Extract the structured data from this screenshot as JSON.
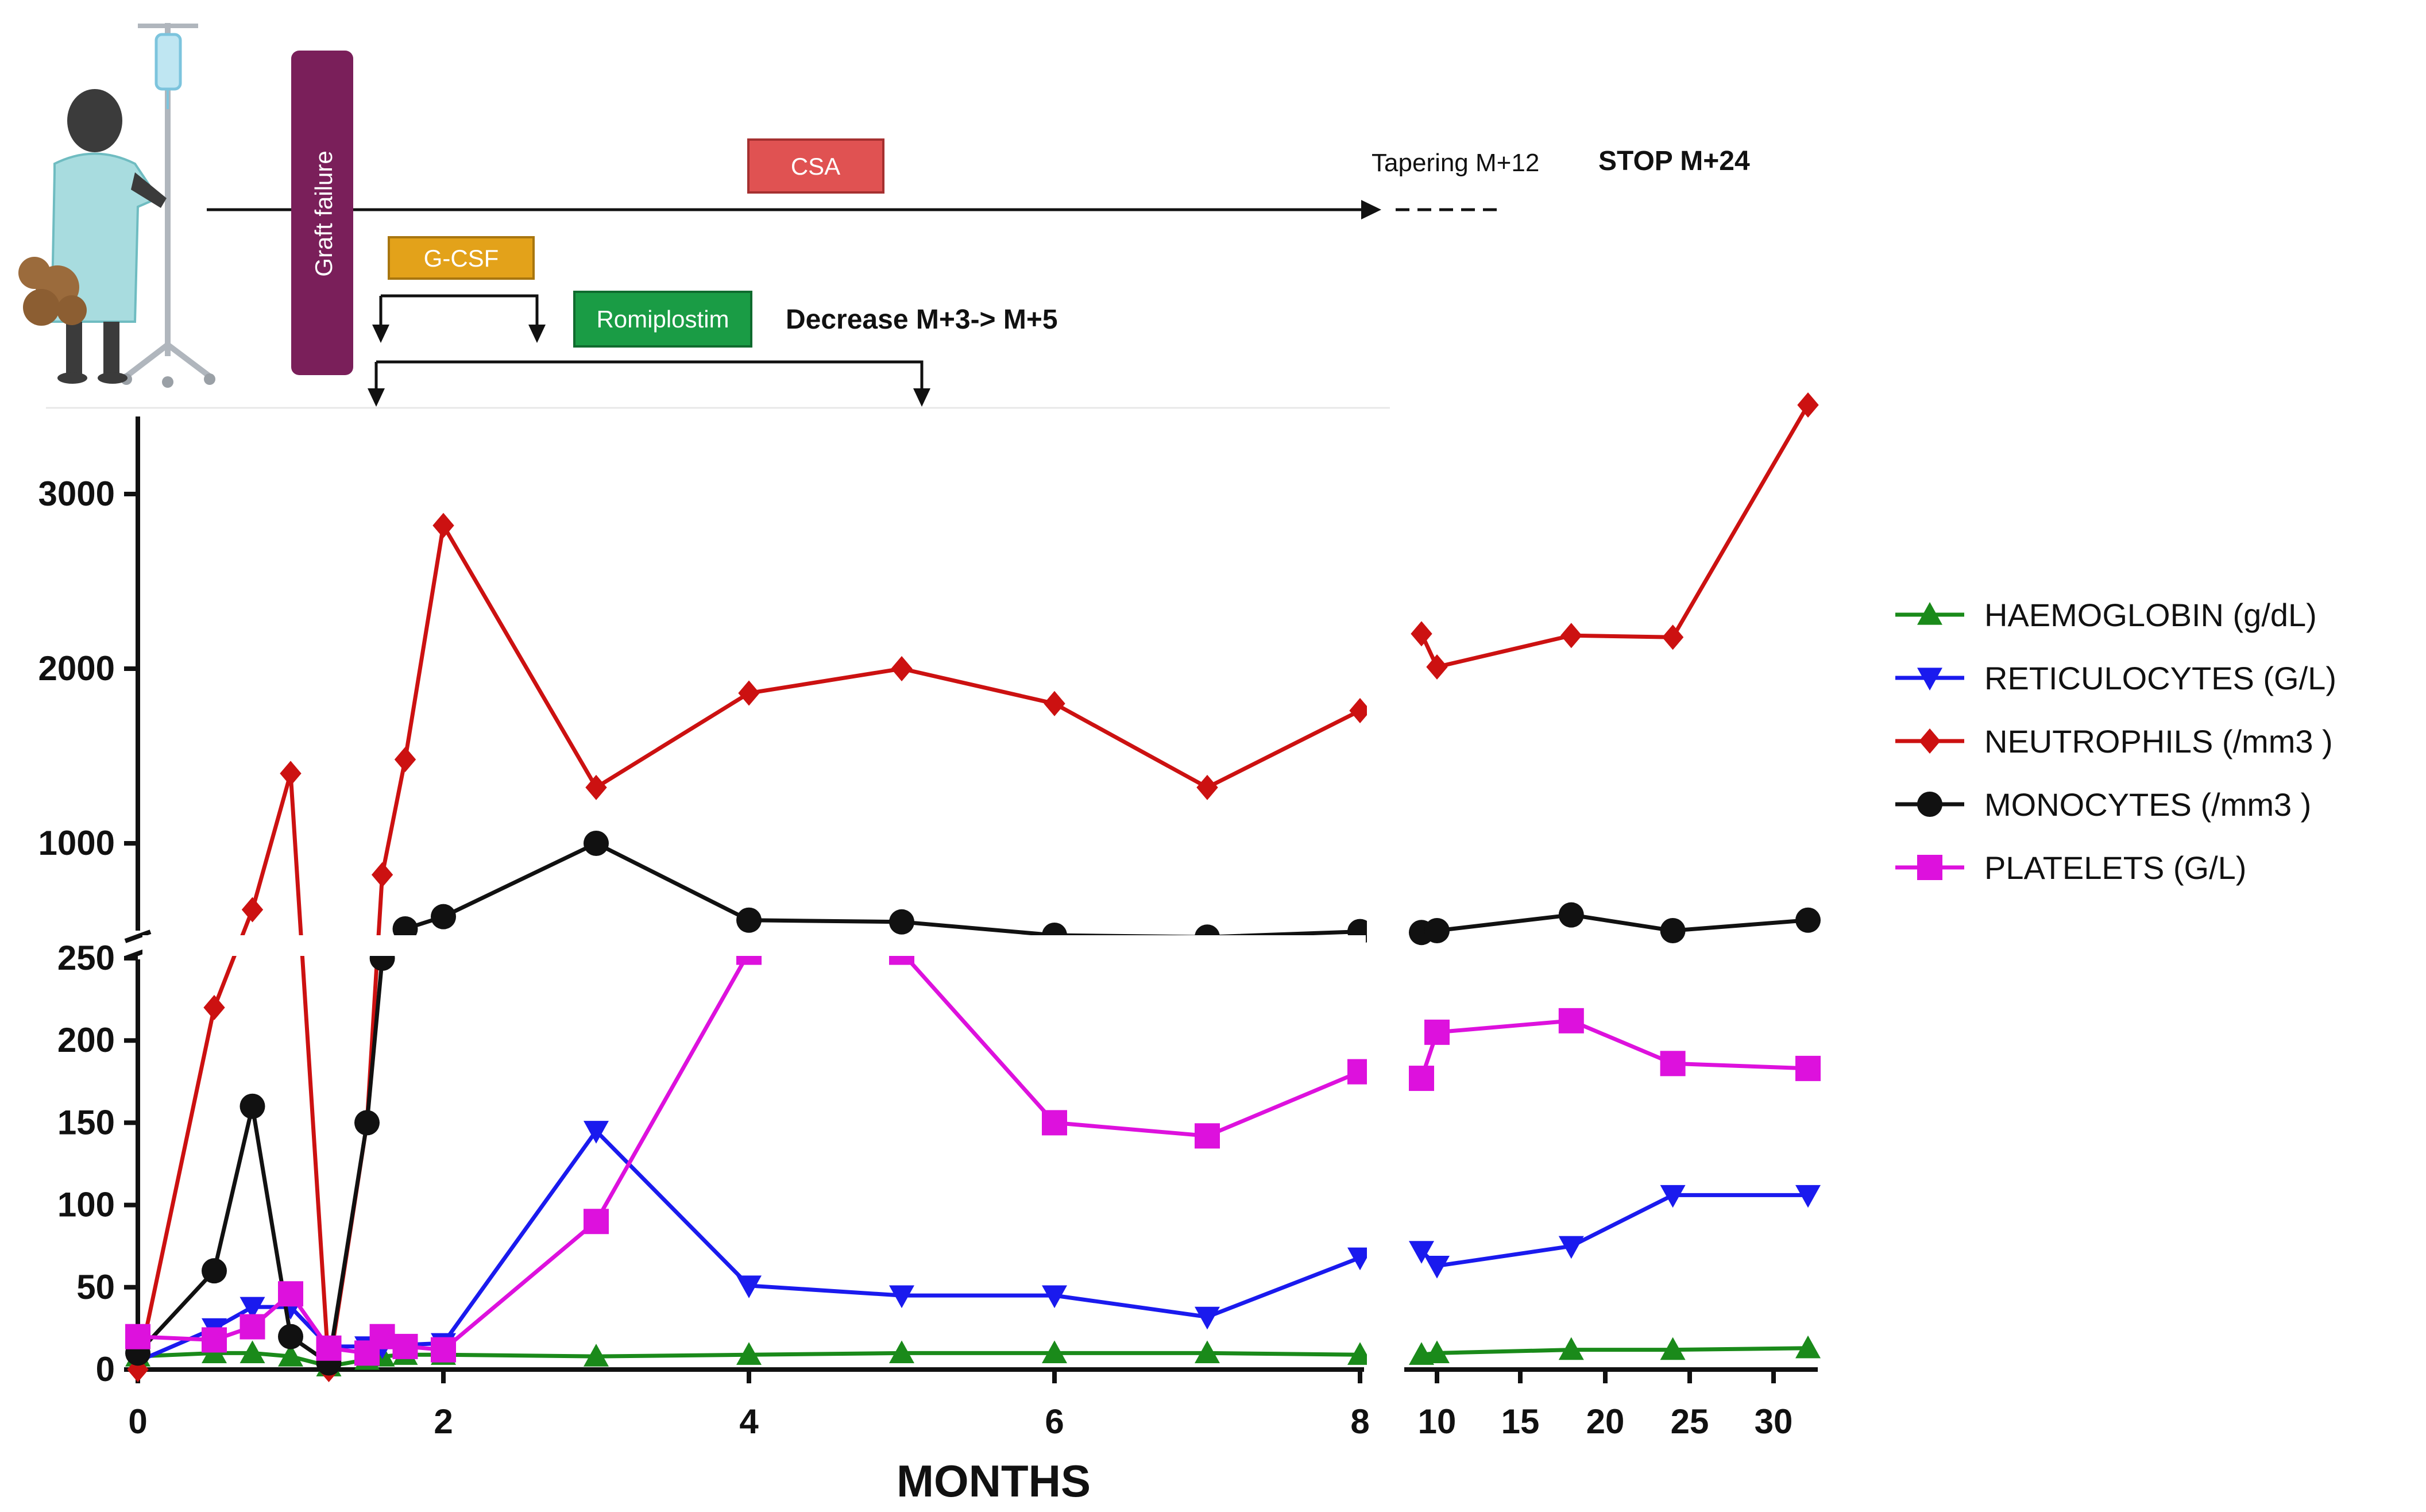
{
  "chart_data": {
    "type": "line",
    "title": "",
    "xlabel": "MONTHS",
    "ylabel": "",
    "x_tick_labels_left": [
      "0",
      "2",
      "4",
      "6",
      "8"
    ],
    "x_tick_labels_right": [
      "10",
      "15",
      "20",
      "25",
      "30"
    ],
    "y_tick_labels_lower": [
      "0",
      "50",
      "100",
      "150",
      "200",
      "250"
    ],
    "y_tick_labels_upper": [
      "1000",
      "2000",
      "3000"
    ],
    "y_axis_break": [
      250,
      500
    ],
    "x_axis_break": [
      8,
      9
    ],
    "ylim_lower": [
      0,
      250
    ],
    "ylim_upper": [
      500,
      3500
    ],
    "legend_position": "right",
    "series": [
      {
        "name": "HAEMOGLOBIN (g/dL)",
        "color": "#1a8a1a",
        "marker": "triangle-up",
        "x": [
          0,
          0.5,
          0.75,
          1,
          1.25,
          1.5,
          1.6,
          1.75,
          2,
          3,
          4,
          5,
          6,
          7,
          8,
          9,
          10,
          18,
          24,
          32
        ],
        "y": [
          8,
          10,
          10,
          8,
          2,
          6,
          8,
          9,
          9,
          8,
          9,
          10,
          10,
          10,
          9,
          9,
          10,
          12,
          12,
          13
        ]
      },
      {
        "name": "RETICULOCYTES (G/L)",
        "color": "#1a1aee",
        "marker": "triangle-down",
        "x": [
          0,
          0.5,
          0.75,
          1,
          1.25,
          1.5,
          1.6,
          1.75,
          2,
          3,
          4,
          5,
          6,
          7,
          8,
          9,
          10,
          18,
          24,
          32
        ],
        "y": [
          5,
          25,
          38,
          38,
          14,
          14,
          14,
          15,
          16,
          145,
          51,
          45,
          45,
          32,
          68,
          72,
          63,
          75,
          106,
          106
        ]
      },
      {
        "name": "NEUTROPHILS (/mm3 )",
        "color": "#cc1111",
        "marker": "diamond",
        "x": [
          0,
          0.5,
          0.75,
          1,
          1.25,
          1.5,
          1.6,
          1.75,
          2,
          3,
          4,
          5,
          6,
          7,
          8,
          9,
          10,
          18,
          24,
          32
        ],
        "y": [
          0,
          220,
          620,
          1400,
          0,
          150,
          820,
          1480,
          2820,
          1320,
          1860,
          2000,
          1800,
          1320,
          1760,
          2200,
          2010,
          2190,
          2180,
          3600
        ]
      },
      {
        "name": "MONOCYTES (/mm3 )",
        "color": "#111111",
        "marker": "circle",
        "x": [
          0,
          0.5,
          0.75,
          1,
          1.25,
          1.5,
          1.6,
          1.75,
          2,
          3,
          4,
          5,
          6,
          7,
          8,
          9,
          10,
          18,
          24,
          32
        ],
        "y": [
          10,
          60,
          160,
          20,
          4,
          150,
          250,
          510,
          580,
          1000,
          560,
          550,
          450,
          430,
          490,
          480,
          500,
          590,
          500,
          560
        ]
      },
      {
        "name": "PLATELETS (G/L)",
        "color": "#dd11dd",
        "marker": "square",
        "x": [
          0,
          0.5,
          0.75,
          1,
          1.25,
          1.5,
          1.6,
          1.75,
          2,
          3,
          4,
          5,
          6,
          7,
          8,
          9,
          10,
          18,
          24,
          32
        ],
        "y": [
          20,
          18,
          26,
          46,
          13,
          10,
          20,
          14,
          12,
          90,
          265,
          265,
          150,
          142,
          181,
          177,
          205,
          212,
          186,
          183
        ]
      }
    ]
  },
  "timeline": {
    "graft_failure": "Graft failure",
    "csa_label": "CSA",
    "gcsf_label": "G-CSF",
    "romiplostim_label": "Romiplostim",
    "tapering_text": "Tapering M+12",
    "stop_text": "STOP M+24",
    "decrease_text": "Decrease M+3-> M+5",
    "colors": {
      "graft_failure": "#7a1f5a",
      "csa": "#e05252",
      "gcsf": "#e3a21a",
      "romiplostim": "#1a9c45"
    }
  }
}
